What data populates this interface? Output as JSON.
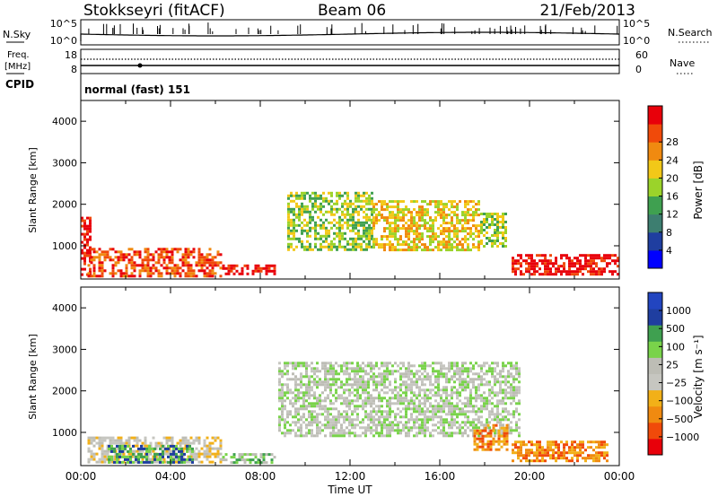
{
  "header": {
    "station": "Stokkseyri (fitACF)",
    "beam": "Beam 06",
    "date": "21/Feb/2013"
  },
  "sky_panel": {
    "left_label": "N.Sky",
    "right_label": "N.Search",
    "left_ticks": [
      "10^5",
      "10^0"
    ],
    "right_ticks": [
      "10^5",
      "10^0"
    ]
  },
  "freq_panel": {
    "left_label_1": "Freq.",
    "left_label_2": "[MHz]",
    "right_label": "Nave",
    "left_ticks": [
      "18",
      "8"
    ],
    "right_ticks": [
      "60",
      "0"
    ]
  },
  "cpid": {
    "label": "CPID",
    "value": "normal (fast) 151"
  },
  "colors": {
    "power": [
      "#0000ff",
      "#1f3ea0",
      "#3d7e70",
      "#3fa050",
      "#9bd32a",
      "#f2c818",
      "#f08a10",
      "#f04a0a",
      "#e8000a"
    ],
    "velocity": [
      "#e8000a",
      "#f04a0a",
      "#f08a10",
      "#f2b018",
      "#c6c6c0",
      "#bdbdb5",
      "#79d34a",
      "#3fa050",
      "#1f3ea0",
      "#2245c0"
    ]
  },
  "chart_data": [
    {
      "type": "heatmap",
      "title": "",
      "xlabel": "",
      "ylabel": "Slant Range [km]",
      "ylim": [
        200,
        4500
      ],
      "yticks": [
        "1000",
        "2000",
        "3000",
        "4000"
      ],
      "colorbar": {
        "label": "Power [dB]",
        "ticks": [
          "4",
          "8",
          "12",
          "16",
          "20",
          "24",
          "28"
        ]
      },
      "regions": [
        {
          "t": [
            0,
            0.4
          ],
          "r": [
            300,
            1700
          ],
          "level": 8
        },
        {
          "t": [
            0.3,
            6.3
          ],
          "r": [
            300,
            950
          ],
          "level": 7
        },
        {
          "t": [
            6.3,
            8.7
          ],
          "r": [
            300,
            550
          ],
          "level": 8
        },
        {
          "t": [
            9.2,
            13.0
          ],
          "r": [
            900,
            2300
          ],
          "level": 4
        },
        {
          "t": [
            13.0,
            17.8
          ],
          "r": [
            900,
            2100
          ],
          "level": 5
        },
        {
          "t": [
            17.8,
            19.0
          ],
          "r": [
            1000,
            1800
          ],
          "level": 4
        },
        {
          "t": [
            19.2,
            23.9
          ],
          "r": [
            300,
            800
          ],
          "level": 8
        }
      ]
    },
    {
      "type": "heatmap",
      "title": "",
      "xlabel": "Time UT",
      "ylabel": "Slant Range [km]",
      "ylim": [
        200,
        4500
      ],
      "yticks": [
        "1000",
        "2000",
        "3000",
        "4000"
      ],
      "xticks": [
        "00:00",
        "04:00",
        "08:00",
        "12:00",
        "16:00",
        "20:00",
        "00:00"
      ],
      "colorbar": {
        "label": "Velocity [m s⁻¹]",
        "ticks": [
          "1000",
          "500",
          "100",
          "25",
          "−25",
          "−100",
          "−500",
          "−1000"
        ]
      },
      "regions": [
        {
          "t": [
            0.3,
            6.3
          ],
          "r": [
            300,
            900
          ],
          "level": 4
        },
        {
          "t": [
            1.2,
            5.0
          ],
          "r": [
            300,
            700
          ],
          "level": 7
        },
        {
          "t": [
            6.3,
            8.7
          ],
          "r": [
            300,
            500
          ],
          "level": 6
        },
        {
          "t": [
            8.8,
            19.5
          ],
          "r": [
            900,
            2700
          ],
          "level": 5
        },
        {
          "t": [
            17.5,
            19.0
          ],
          "r": [
            600,
            1200
          ],
          "level": 2
        },
        {
          "t": [
            19.2,
            23.5
          ],
          "r": [
            300,
            800
          ],
          "level": 2
        }
      ]
    }
  ]
}
